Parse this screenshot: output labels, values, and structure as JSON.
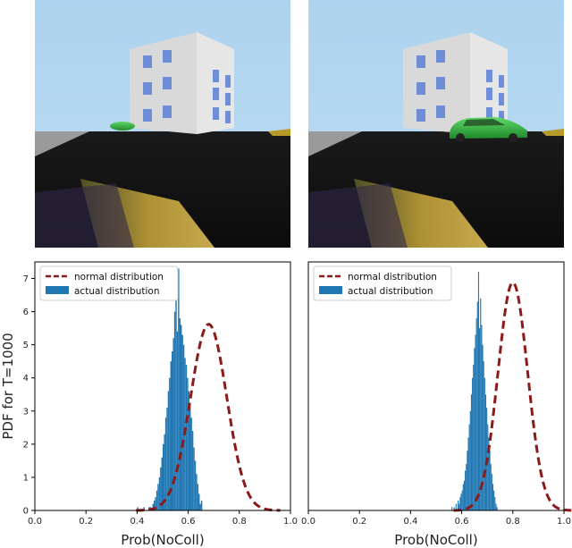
{
  "scenes": [
    {
      "car_position": "far"
    },
    {
      "car_position": "near"
    }
  ],
  "chart_data": [
    {
      "type": "bar",
      "xlabel": "Prob(NoColl)",
      "ylabel": "PDF for T=1000",
      "xlim": [
        0.0,
        1.0
      ],
      "ylim": [
        0,
        7.5
      ],
      "xticks": [
        "0.0",
        "0.2",
        "0.4",
        "0.6",
        "0.8",
        "1.0"
      ],
      "yticks": [
        "0",
        "1",
        "2",
        "3",
        "4",
        "5",
        "6",
        "7"
      ],
      "legend": {
        "position": "top-left",
        "entries": [
          "normal distribution",
          "actual distribution"
        ]
      },
      "series": [
        {
          "name": "normal distribution",
          "kind": "line",
          "mean": 0.68,
          "std": 0.071,
          "color": "#8b1a1a"
        },
        {
          "name": "actual distribution",
          "kind": "histogram",
          "bin_width": 0.005,
          "bin_start": 0.4,
          "color": "#1f77b4",
          "values": [
            0.1,
            0,
            0,
            0,
            0,
            0.1,
            0,
            0,
            0,
            0.1,
            0.1,
            0,
            0.2,
            0.3,
            0.4,
            0.6,
            0.8,
            1.0,
            1.3,
            1.6,
            2.0,
            2.3,
            2.8,
            3.1,
            3.6,
            4.0,
            4.5,
            4.8,
            5.2,
            6.0,
            6.6,
            5.4,
            7.3,
            5.8,
            5.6,
            5.3,
            5.0,
            4.6,
            4.4,
            4.0,
            3.6,
            3.2,
            2.8,
            2.4,
            1.9,
            1.5,
            1.1,
            0.8,
            0.5,
            0.2,
            0.3
          ]
        }
      ]
    },
    {
      "type": "bar",
      "xlabel": "Prob(NoColl)",
      "ylabel": "",
      "xlim": [
        0.0,
        1.0
      ],
      "ylim": [
        0,
        7.5
      ],
      "xticks": [
        "0.0",
        "0.2",
        "0.4",
        "0.6",
        "0.8",
        "1.0"
      ],
      "yticks": [],
      "legend": {
        "position": "top-left",
        "entries": [
          "normal distribution",
          "actual distribution"
        ]
      },
      "series": [
        {
          "name": "normal distribution",
          "kind": "line",
          "mean": 0.8,
          "std": 0.058,
          "color": "#8b1a1a"
        },
        {
          "name": "actual distribution",
          "kind": "histogram",
          "bin_width": 0.004,
          "bin_start": 0.56,
          "color": "#1f77b4",
          "values": [
            0.1,
            0,
            0.1,
            0,
            0.2,
            0,
            0.3,
            0.2,
            0.4,
            0.5,
            0.6,
            0.8,
            0.9,
            1.2,
            1.4,
            1.8,
            2.2,
            2.6,
            3.0,
            3.5,
            4.0,
            4.4,
            4.9,
            5.3,
            5.8,
            6.3,
            7.2,
            5.5,
            6.4,
            5.6,
            5.0,
            4.5,
            4.0,
            3.5,
            3.1,
            2.6,
            2.2,
            1.8,
            1.4,
            1.1,
            0.8,
            0.6,
            0.4,
            0.2,
            0.1
          ]
        }
      ]
    }
  ]
}
